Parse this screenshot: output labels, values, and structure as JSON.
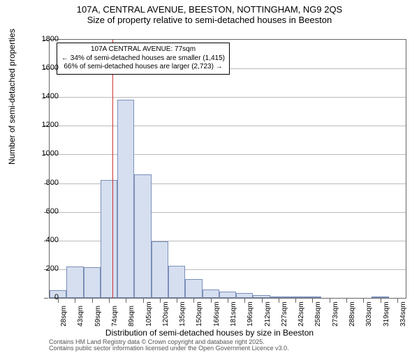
{
  "title_main": "107A, CENTRAL AVENUE, BEESTON, NOTTINGHAM, NG9 2QS",
  "title_sub": "Size of property relative to semi-detached houses in Beeston",
  "y_axis_title": "Number of semi-detached properties",
  "x_axis_title": "Distribution of semi-detached houses by size in Beeston",
  "chart": {
    "type": "histogram",
    "ylim": [
      0,
      1800
    ],
    "ytick_step": 200,
    "bar_fill": "#d6dff0",
    "bar_border": "#7a8fb8",
    "grid_color": "#bbbbbb",
    "axis_color": "#666666",
    "background_color": "#ffffff",
    "x_categories": [
      "28sqm",
      "43sqm",
      "59sqm",
      "74sqm",
      "89sqm",
      "105sqm",
      "120sqm",
      "135sqm",
      "150sqm",
      "166sqm",
      "181sqm",
      "196sqm",
      "212sqm",
      "227sqm",
      "242sqm",
      "258sqm",
      "273sqm",
      "288sqm",
      "303sqm",
      "319sqm",
      "334sqm"
    ],
    "values": [
      55,
      220,
      215,
      820,
      1380,
      860,
      395,
      225,
      130,
      60,
      45,
      34,
      20,
      12,
      8,
      6,
      0,
      0,
      0,
      6,
      0
    ],
    "marker_line_x_index": 3.2,
    "marker_line_color": "#cc3333"
  },
  "annotation": {
    "line1": "107A CENTRAL AVENUE: 77sqm",
    "line2": "← 34% of semi-detached houses are smaller (1,415)",
    "line3": "66% of semi-detached houses are larger (2,723) →"
  },
  "footer1": "Contains HM Land Registry data © Crown copyright and database right 2025.",
  "footer2": "Contains public sector information licensed under the Open Government Licence v3.0."
}
